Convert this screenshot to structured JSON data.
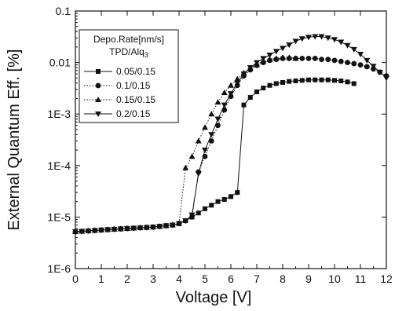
{
  "chart_data": {
    "type": "scatter",
    "xlabel": "Voltage [V]",
    "ylabel": "External Quantum Eff. [%]",
    "x_ticks": [
      "0",
      "1",
      "2",
      "3",
      "4",
      "5",
      "6",
      "7",
      "8",
      "9",
      "10",
      "11",
      "12"
    ],
    "y_ticks": [
      "1E-6",
      "1E-5",
      "1E-4",
      "1E-3",
      "0.01",
      "0.1"
    ],
    "xlim": [
      0,
      12
    ],
    "ylim": [
      1e-06,
      0.1
    ],
    "y_scale": "log",
    "grid": false,
    "legend": {
      "title_line1": "Depo.Rate[nm/s]",
      "title_line2": "TPD/Alq",
      "title_line2_sub": "3",
      "placement": "upper-left"
    },
    "series": [
      {
        "name": "0.05/0.15",
        "marker": "square",
        "line": "solid",
        "color": "#111111",
        "x": [
          0.0,
          0.25,
          0.5,
          0.75,
          1.0,
          1.25,
          1.5,
          1.75,
          2.0,
          2.25,
          2.5,
          2.75,
          3.0,
          3.25,
          3.5,
          3.75,
          4.0,
          4.25,
          4.5,
          4.75,
          5.0,
          5.25,
          5.5,
          5.75,
          6.0,
          6.25,
          6.5,
          6.75,
          7.0,
          7.25,
          7.5,
          7.75,
          8.0,
          8.25,
          8.5,
          8.75,
          9.0,
          9.25,
          9.5,
          9.75,
          10.0,
          10.25,
          10.5,
          10.75
        ],
        "y": [
          5.2e-06,
          5.3e-06,
          5.4e-06,
          5.5e-06,
          5.6e-06,
          5.7e-06,
          5.8e-06,
          5.9e-06,
          6e-06,
          6.1e-06,
          6.2e-06,
          6.3e-06,
          6.4e-06,
          6.6e-06,
          6.8e-06,
          7e-06,
          7.5e-06,
          8.5e-06,
          1e-05,
          1.2e-05,
          1.45e-05,
          1.7e-05,
          2e-05,
          2.2e-05,
          2.5e-05,
          3e-05,
          0.0015,
          0.0021,
          0.0027,
          0.0032,
          0.0036,
          0.0039,
          0.0041,
          0.0043,
          0.0044,
          0.0045,
          0.0046,
          0.0046,
          0.0046,
          0.0046,
          0.0045,
          0.0044,
          0.0042,
          0.0039
        ]
      },
      {
        "name": "0.1/0.15",
        "marker": "circle",
        "line": "dotted",
        "color": "#111111",
        "x": [
          0.0,
          0.25,
          0.5,
          0.75,
          1.0,
          1.25,
          1.5,
          1.75,
          2.0,
          2.25,
          2.5,
          2.75,
          3.0,
          3.25,
          3.5,
          3.75,
          4.0,
          4.25,
          4.5,
          4.75,
          5.0,
          5.25,
          5.5,
          5.75,
          6.0,
          6.25,
          6.5,
          6.75,
          7.0,
          7.25,
          7.5,
          7.75,
          8.0,
          8.25,
          8.5,
          8.75,
          9.0,
          9.25,
          9.5,
          9.75,
          10.0,
          10.25,
          10.5,
          10.75,
          11.0,
          11.25,
          11.5,
          11.75,
          12.0
        ],
        "y": [
          5.2e-06,
          5.3e-06,
          5.4e-06,
          5.5e-06,
          5.6e-06,
          5.7e-06,
          5.8e-06,
          5.9e-06,
          6e-06,
          6.1e-06,
          6.2e-06,
          6.3e-06,
          6.4e-06,
          6.6e-06,
          6.8e-06,
          7e-06,
          7.5e-06,
          8.5e-06,
          1e-05,
          7.5e-05,
          0.00015,
          0.0003,
          0.0006,
          0.0012,
          0.0022,
          0.0036,
          0.0055,
          0.0072,
          0.0088,
          0.01,
          0.011,
          0.0115,
          0.012,
          0.012,
          0.012,
          0.012,
          0.012,
          0.012,
          0.0115,
          0.0115,
          0.011,
          0.0105,
          0.01,
          0.0095,
          0.009,
          0.0083,
          0.0075,
          0.0065,
          0.0055
        ]
      },
      {
        "name": "0.15/0.15",
        "marker": "triangle-up",
        "line": "dotted",
        "color": "#111111",
        "x": [
          0.0,
          0.25,
          0.5,
          0.75,
          1.0,
          1.25,
          1.5,
          1.75,
          2.0,
          2.25,
          2.5,
          2.75,
          3.0,
          3.25,
          3.5,
          3.75,
          4.0,
          4.25,
          4.5,
          4.75,
          5.0,
          5.25,
          5.5,
          5.75,
          6.0,
          6.25,
          6.5,
          6.75,
          7.0,
          7.25,
          7.5,
          7.75,
          8.0,
          8.25,
          8.5
        ],
        "y": [
          5.2e-06,
          5.3e-06,
          5.4e-06,
          5.5e-06,
          5.6e-06,
          5.7e-06,
          5.8e-06,
          5.9e-06,
          6e-06,
          6.1e-06,
          6.2e-06,
          6.3e-06,
          6.4e-06,
          6.6e-06,
          6.8e-06,
          7e-06,
          7.5e-06,
          9e-05,
          0.00015,
          0.0003,
          0.00055,
          0.001,
          0.0017,
          0.0026,
          0.0036,
          0.0048,
          0.0063,
          0.0078,
          0.0092,
          0.0105,
          0.0115,
          0.012,
          0.0125,
          0.0125,
          0.012
        ]
      },
      {
        "name": "0.2/0.15",
        "marker": "triangle-down",
        "line": "solid",
        "color": "#111111",
        "x": [
          0.0,
          0.25,
          0.5,
          0.75,
          1.0,
          1.25,
          1.5,
          1.75,
          2.0,
          2.25,
          2.5,
          2.75,
          3.0,
          3.25,
          3.5,
          3.75,
          4.0,
          4.25,
          4.5,
          4.75,
          5.0,
          5.25,
          5.5,
          5.75,
          6.0,
          6.25,
          6.5,
          6.75,
          7.0,
          7.25,
          7.5,
          7.75,
          8.0,
          8.25,
          8.5,
          8.75,
          9.0,
          9.25,
          9.5,
          9.75,
          10.0,
          10.25,
          10.5,
          10.75,
          11.0,
          11.25,
          11.5,
          11.75,
          12.0
        ],
        "y": [
          5.2e-06,
          5.3e-06,
          5.4e-06,
          5.5e-06,
          5.6e-06,
          5.7e-06,
          5.8e-06,
          5.9e-06,
          6e-06,
          6.1e-06,
          6.2e-06,
          6.3e-06,
          6.4e-06,
          6.6e-06,
          6.8e-06,
          7e-06,
          7.5e-06,
          8.5e-06,
          1.1e-05,
          7e-05,
          0.0002,
          0.0004,
          0.0008,
          0.0015,
          0.0025,
          0.004,
          0.006,
          0.008,
          0.01,
          0.012,
          0.014,
          0.0165,
          0.019,
          0.022,
          0.026,
          0.029,
          0.031,
          0.032,
          0.032,
          0.03,
          0.028,
          0.025,
          0.0215,
          0.018,
          0.0145,
          0.011,
          0.0085,
          0.0065,
          0.005
        ]
      }
    ]
  }
}
